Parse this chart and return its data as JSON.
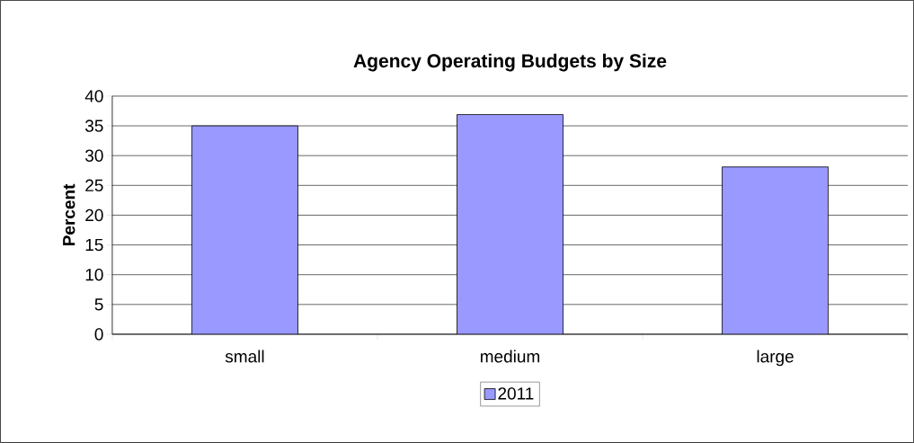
{
  "chart_data": {
    "type": "bar",
    "title": "Agency Operating Budgets by Size",
    "ylabel": "Percent",
    "categories": [
      "small",
      "medium",
      "large"
    ],
    "series": [
      {
        "name": "2011",
        "color": "#9999ff",
        "values": [
          35,
          36.9,
          28.1
        ]
      }
    ],
    "ylim": [
      0,
      40
    ],
    "yticks": [
      0,
      5,
      10,
      15,
      20,
      25,
      30,
      35,
      40
    ],
    "grid": "y",
    "legend": "bottom"
  }
}
